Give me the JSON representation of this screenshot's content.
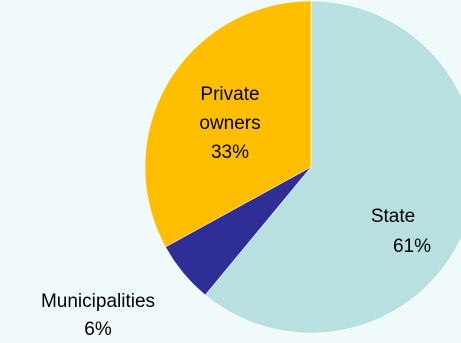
{
  "chart_data": {
    "type": "pie",
    "title": "",
    "slices": [
      {
        "label": "State",
        "value": 61,
        "value_label": "61%",
        "color": "#b8e0e0"
      },
      {
        "label": "Municipalities",
        "value": 6,
        "value_label": "6%",
        "color": "#2e2e96"
      },
      {
        "label": "Private owners",
        "value": 33,
        "value_label": "33%",
        "color": "#ffbf00"
      }
    ],
    "start_angle_deg": 0,
    "direction": "clockwise",
    "legend": "none"
  },
  "colors": {
    "background": "#f0fafa",
    "edge": "#ffffff"
  }
}
